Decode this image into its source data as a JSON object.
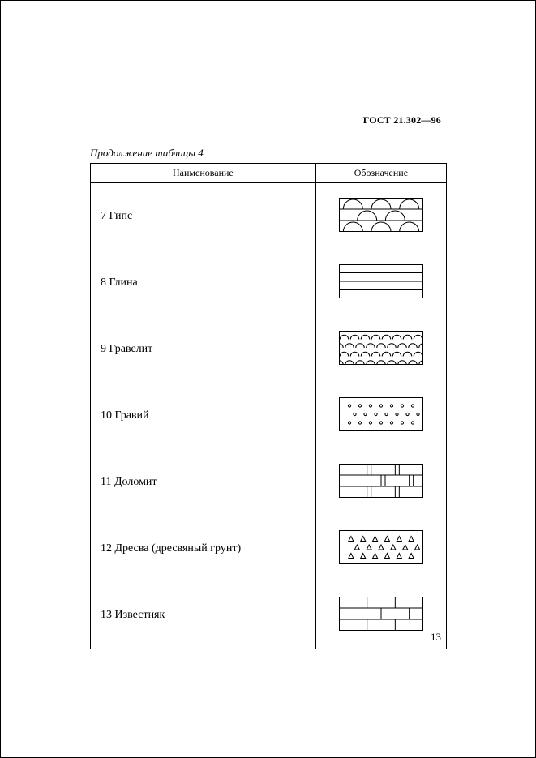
{
  "document_code": "ГОСТ 21.302—96",
  "table_caption": "Продолжение таблицы 4",
  "columns": {
    "name": "Наименование",
    "symbol": "Обозначение"
  },
  "page_number": "13",
  "swatch": {
    "width": 104,
    "height": 42,
    "stroke": "#000000",
    "stroke_width": 1,
    "fill": "#ffffff"
  },
  "rows": [
    {
      "num": "7",
      "label": "Гипс",
      "hatch": "gypsum"
    },
    {
      "num": "8",
      "label": "Глина",
      "hatch": "clay"
    },
    {
      "num": "9",
      "label": "Гравелит",
      "hatch": "gravelite"
    },
    {
      "num": "10",
      "label": "Гравий",
      "hatch": "gravel"
    },
    {
      "num": "11",
      "label": "Доломит",
      "hatch": "dolomite"
    },
    {
      "num": "12",
      "label": "Дресва (дресвяный грунт)",
      "hatch": "grus"
    },
    {
      "num": "13",
      "label": "Известняк",
      "hatch": "limestone"
    }
  ]
}
